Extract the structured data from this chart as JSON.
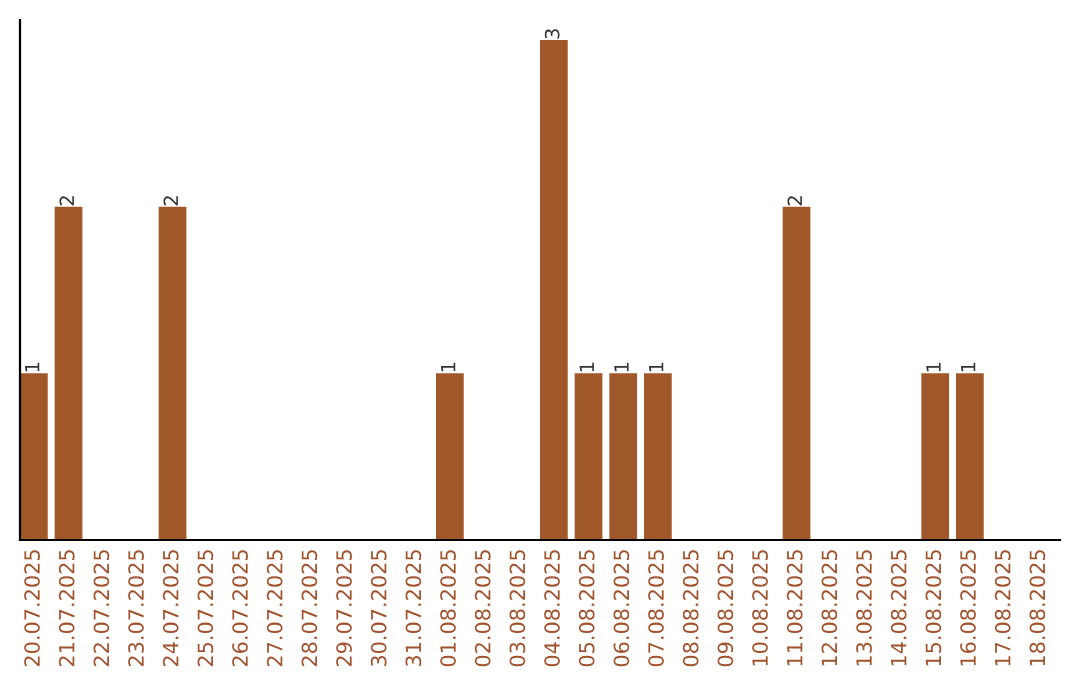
{
  "chart_data": {
    "type": "bar",
    "categories": [
      "20.07.2025",
      "21.07.2025",
      "22.07.2025",
      "23.07.2025",
      "24.07.2025",
      "25.07.2025",
      "26.07.2025",
      "27.07.2025",
      "28.07.2025",
      "29.07.2025",
      "30.07.2025",
      "31.07.2025",
      "01.08.2025",
      "02.08.2025",
      "03.08.2025",
      "04.08.2025",
      "05.08.2025",
      "06.08.2025",
      "07.08.2025",
      "08.08.2025",
      "09.08.2025",
      "10.08.2025",
      "11.08.2025",
      "12.08.2025",
      "13.08.2025",
      "14.08.2025",
      "15.08.2025",
      "16.08.2025",
      "17.08.2025",
      "18.08.2025"
    ],
    "values": [
      1,
      2,
      0,
      0,
      2,
      0,
      0,
      0,
      0,
      0,
      0,
      0,
      1,
      0,
      0,
      3,
      1,
      1,
      1,
      0,
      0,
      0,
      2,
      0,
      0,
      0,
      1,
      1,
      0,
      0
    ],
    "value_labels": [
      "1",
      "2",
      null,
      null,
      "2",
      null,
      null,
      null,
      null,
      null,
      null,
      null,
      "1",
      null,
      null,
      "3",
      "1",
      "1",
      "1",
      null,
      null,
      null,
      "2",
      null,
      null,
      null,
      "1",
      "1",
      null,
      null
    ],
    "color": "#a0582a",
    "grid": false,
    "legend": false
  }
}
